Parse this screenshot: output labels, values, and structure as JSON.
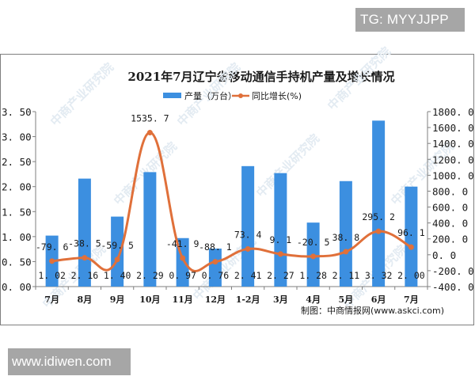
{
  "badges": {
    "top": "TG: MYYJJPP",
    "bottom": "www.idiwen.com"
  },
  "chart": {
    "title": "2021年7月辽宁省移动通信手持机产量及增长情况",
    "legend": {
      "bar": "产量（万台）",
      "line": "同比增长(%)"
    },
    "source": "制图：中商情报网(www.askci.com)",
    "watermark": "中商产业研究院",
    "colors": {
      "bar": "#3c8fe0",
      "line": "#e0703a",
      "axis": "#7f7f7f"
    },
    "left_ticks": [
      "0.00",
      "0.50",
      "1.00",
      "1.50",
      "2.00",
      "2.50",
      "3.00",
      "3.50"
    ],
    "right_ticks": [
      "-400.0",
      "-200.0",
      "0.0",
      "200.0",
      "400.0",
      "600.0",
      "800.0",
      "1000.0",
      "1200.0",
      "1400.0",
      "1600.0",
      "1800.0"
    ]
  },
  "chart_data": {
    "type": "bar",
    "title": "2021年7月辽宁省移动通信手持机产量及增长情况",
    "categories": [
      "7月",
      "8月",
      "9月",
      "10月",
      "11月",
      "12月",
      "1-2月",
      "3月",
      "4月",
      "5月",
      "6月",
      "7月"
    ],
    "series": [
      {
        "name": "产量（万台）",
        "type": "bar",
        "axis": "left",
        "values": [
          1.02,
          2.16,
          1.4,
          2.29,
          0.97,
          0.76,
          2.41,
          2.27,
          1.28,
          2.11,
          3.32,
          2.0
        ],
        "labels": [
          "1.02",
          "2.16",
          "1.40",
          "2.29",
          "0.97",
          "0.76",
          "2.41",
          "2.27",
          "1.28",
          "2.11",
          "3.32",
          "2.00"
        ]
      },
      {
        "name": "同比增长(%)",
        "type": "line",
        "axis": "right",
        "values": [
          -79.6,
          -38.5,
          -59.5,
          1535.7,
          -41.9,
          -88.1,
          73.4,
          9.1,
          -20.5,
          38.8,
          295.2,
          96.1
        ],
        "labels": [
          "-79.6",
          "-38.5",
          "-59.5",
          "1535.7",
          "-41.9",
          "-88.1",
          "73.4",
          "9.1",
          "-20.5",
          "38.8",
          "295.2",
          "96.1"
        ]
      }
    ],
    "xlabel": "",
    "ylabel_left": "产量（万台）",
    "ylabel_right": "同比增长(%)",
    "ylim_left": [
      0,
      3.5
    ],
    "ylim_right": [
      -400,
      1800
    ],
    "grid": false,
    "legend_position": "top",
    "source": "制图：中商情报网(www.askci.com)"
  }
}
